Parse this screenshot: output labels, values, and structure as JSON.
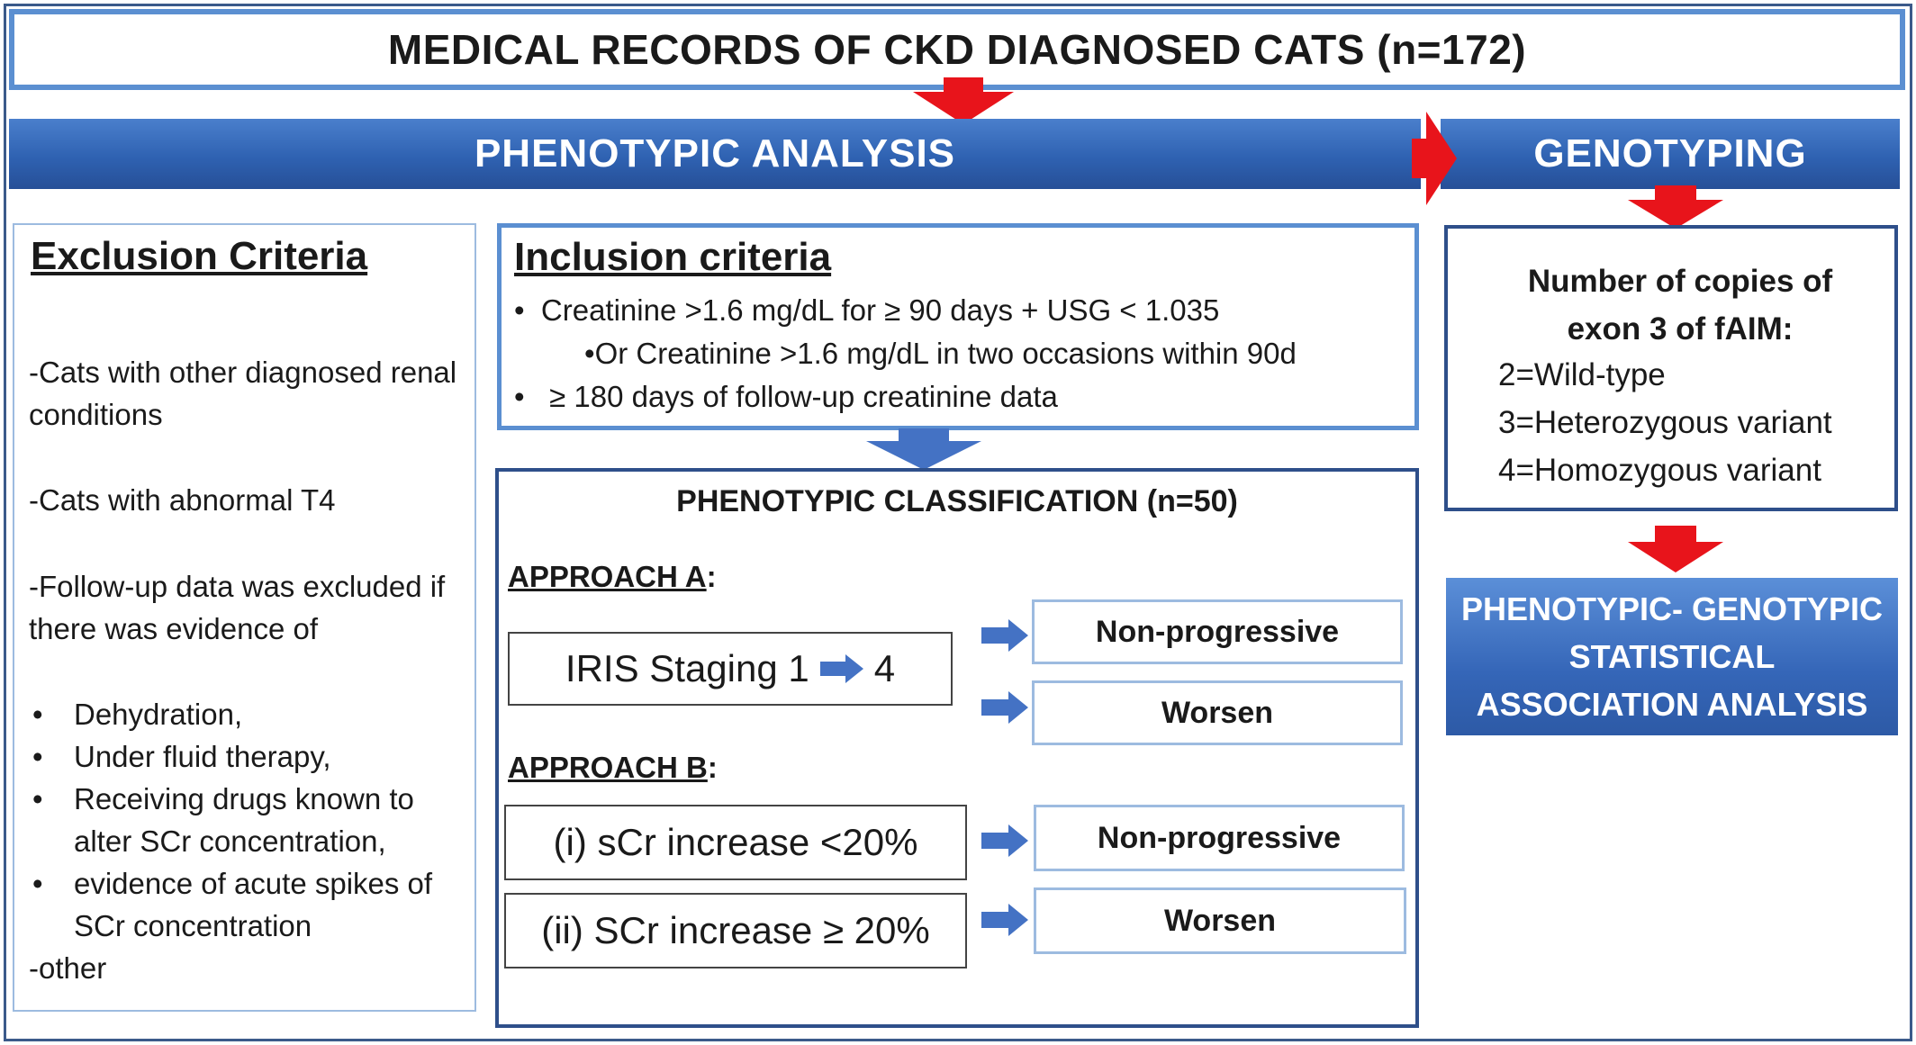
{
  "title": "MEDICAL RECORDS OF CKD DIAGNOSED CATS (n=172)",
  "banners": {
    "phenotypic": "PHENOTYPIC ANALYSIS",
    "genotyping": "GENOTYPING"
  },
  "exclusion": {
    "heading": "Exclusion Criteria",
    "items": [
      "-Cats with other diagnosed renal conditions",
      "-Cats with abnormal T4",
      "-Follow-up data was excluded if there was evidence of"
    ],
    "bullets": [
      "Dehydration,",
      "Under fluid therapy,",
      "Receiving drugs known to alter SCr concentration,",
      "evidence of acute spikes of SCr concentration"
    ],
    "other": "-other"
  },
  "inclusion": {
    "heading": "Inclusion criteria",
    "line1": "Creatinine >1.6 mg/dL for ≥ 90 days + USG < 1.035",
    "line2": "Or Creatinine >1.6 mg/dL in two occasions within 90d",
    "line3": "≥ 180 days of follow-up creatinine data"
  },
  "classification": {
    "heading": "PHENOTYPIC CLASSIFICATION  (n=50)",
    "approach_a": {
      "label": "APPROACH A",
      "stage_prefix": "IRIS Staging 1",
      "stage_suffix": "4",
      "outcome_1": "Non-progressive",
      "outcome_2": "Worsen"
    },
    "approach_b": {
      "label": "APPROACH B",
      "criterion_1": "(i) sCr increase <20%",
      "criterion_2": "(ii) SCr increase ≥ 20%",
      "outcome_1": "Non-progressive",
      "outcome_2": "Worsen"
    }
  },
  "genotyping": {
    "heading_line1": "Number of copies of",
    "heading_line2": "exon 3 of fAIM:",
    "items": [
      "2=Wild-type",
      "3=Heterozygous variant",
      "4=Homozygous variant"
    ]
  },
  "association": {
    "line1": "PHENOTYPIC- GENOTYPIC",
    "line2": "STATISTICAL",
    "line3": "ASSOCIATION ANALYSIS"
  },
  "colors": {
    "banner_blue": "#2f62b2",
    "box_border": "#5b8fd1",
    "dark_border": "#2e4f8a",
    "arrow_red": "#e8141b",
    "arrow_blue": "#4472c4"
  }
}
